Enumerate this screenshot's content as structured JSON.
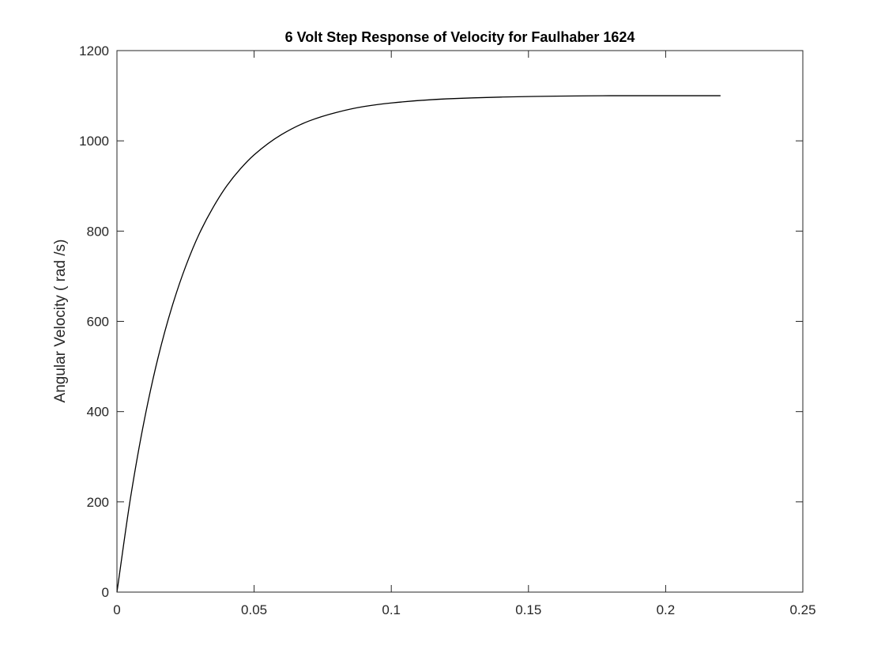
{
  "chart_data": {
    "type": "line",
    "title": "6 Volt Step Response of Velocity for Faulhaber 1624",
    "xlabel": "",
    "ylabel": "Angular Velocity ( rad /s)",
    "xlim": [
      0,
      0.25
    ],
    "ylim": [
      0,
      1200
    ],
    "xticks": [
      0,
      0.05,
      0.1,
      0.15,
      0.2,
      0.25
    ],
    "xtick_labels": [
      "0",
      "0.05",
      "0.1",
      "0.15",
      "0.2",
      "0.25"
    ],
    "yticks": [
      0,
      200,
      400,
      600,
      800,
      1000,
      1200
    ],
    "ytick_labels": [
      "0",
      "200",
      "400",
      "600",
      "800",
      "1000",
      "1200"
    ],
    "grid": false,
    "line_color": "#000000",
    "series": [
      {
        "x": [
          0,
          0.005,
          0.01,
          0.015,
          0.02,
          0.025,
          0.03,
          0.035,
          0.04,
          0.045,
          0.05,
          0.06,
          0.07,
          0.08,
          0.09,
          0.1,
          0.12,
          0.14,
          0.16,
          0.18,
          0.2,
          0.22
        ],
        "values": [
          0,
          211,
          382,
          520,
          631,
          721,
          794,
          852,
          900,
          938,
          969,
          1014,
          1044,
          1063,
          1076,
          1084,
          1093,
          1097,
          1099,
          1100,
          1100,
          1100
        ]
      }
    ]
  }
}
